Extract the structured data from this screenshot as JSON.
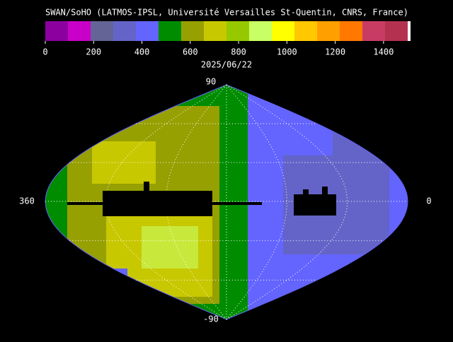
{
  "header": {
    "title": "SWAN/SoHO (LATMOS-IPSL, Université Versailles St-Quentin, CNRS, France)",
    "date": "2025/06/22"
  },
  "colorbar": {
    "range": [
      0,
      1500
    ],
    "ticks": [
      0,
      200,
      400,
      600,
      800,
      1000,
      1200,
      1400
    ],
    "colors": [
      "#8c00a0",
      "#c800c8",
      "#646496",
      "#6464c8",
      "#6464ff",
      "#008c00",
      "#96a000",
      "#c8c800",
      "#96c800",
      "#c8ff64",
      "#ffff00",
      "#ffc800",
      "#ffa000",
      "#ff7800",
      "#c83c64",
      "#b43250",
      "#ffffff"
    ]
  },
  "map": {
    "top_label": "90",
    "bottom_label": "-90",
    "left_label": "360",
    "right_label": "0"
  }
}
